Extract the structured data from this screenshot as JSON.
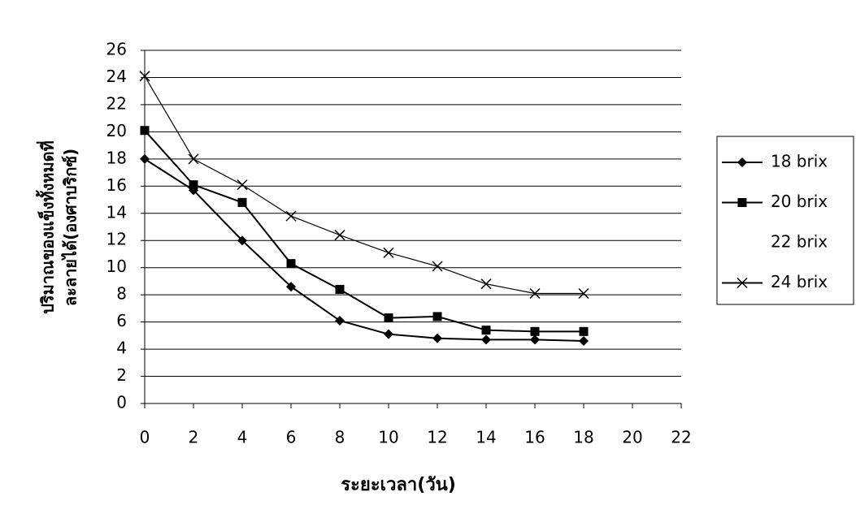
{
  "chart_data": {
    "type": "line",
    "y_label": [
      "ปริมาณของแข็งทั้งหมดที่",
      "ละลายได้(องศาบริกซ์)"
    ],
    "x_label": "ระยะเวลา(วัน)",
    "x": [
      0,
      2,
      4,
      6,
      8,
      10,
      12,
      14,
      16,
      18
    ],
    "series": [
      {
        "name": "18 brix",
        "color": "#000000",
        "marker": "diamond",
        "values": [
          18,
          15.7,
          12,
          8.6,
          6.1,
          5.1,
          4.8,
          4.7,
          4.7,
          4.6
        ]
      },
      {
        "name": "20 brix",
        "color": "#000000",
        "marker": "square",
        "values": [
          20.1,
          16.1,
          14.8,
          10.3,
          8.4,
          6.3,
          6.4,
          5.4,
          5.3,
          5.3
        ]
      },
      {
        "name": "22 brix",
        "values": [
          null,
          null,
          null,
          null,
          null,
          null,
          null,
          null,
          null,
          null
        ]
      },
      {
        "name": "24 brix",
        "color": "#000000",
        "marker": "x",
        "values": [
          24.1,
          18,
          16.1,
          13.8,
          12.4,
          11.1,
          10.1,
          8.8,
          8.1,
          8.1
        ]
      }
    ],
    "xlim": [
      0,
      22
    ],
    "xticks": [
      0,
      2,
      4,
      6,
      8,
      10,
      12,
      14,
      16,
      18,
      20,
      22
    ],
    "ylim": [
      0,
      26
    ],
    "yticks": [
      0,
      2,
      4,
      6,
      8,
      10,
      12,
      14,
      16,
      18,
      20,
      22,
      24,
      26
    ],
    "grid": true
  }
}
